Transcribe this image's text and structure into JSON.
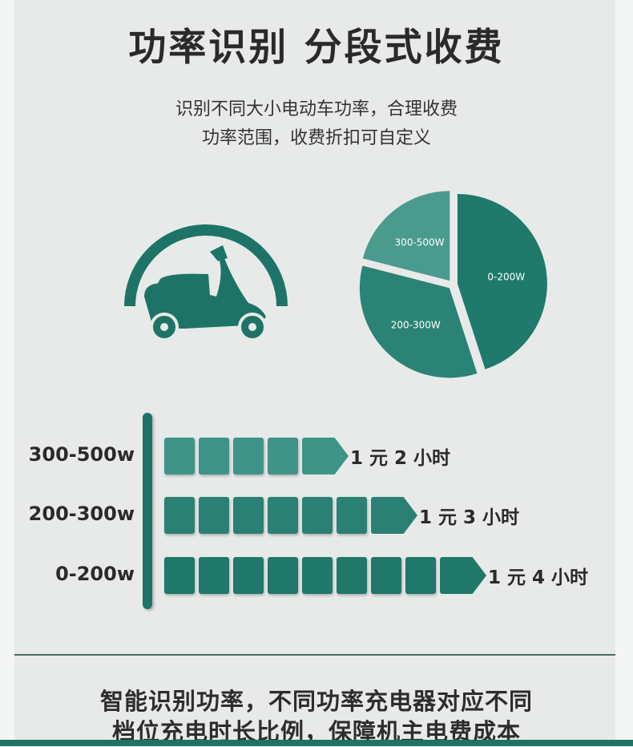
{
  "title": "功率识别 分段式收费",
  "subtitle_lines": [
    "识别不同大小电动车功率，合理收费",
    "功率范围，收费折扣可自定义"
  ],
  "icon": "electric-scooter-icon",
  "colors": {
    "accent": "#1d7466",
    "slice_0_200": "#1f7a6c",
    "slice_200_300": "#2a8375",
    "slice_300_500": "#4a9a8e",
    "panel": "#e7eae8"
  },
  "chart_data": {
    "type": "pie",
    "slices": [
      {
        "label": "0-200W",
        "share": 45
      },
      {
        "label": "200-300W",
        "share": 34
      },
      {
        "label": "300-500W",
        "share": 21
      }
    ]
  },
  "tiers": [
    {
      "label": "300-500w",
      "blocks": 5,
      "price": "1 元 2 小时",
      "color": "#3f9488"
    },
    {
      "label": "200-300w",
      "blocks": 7,
      "price": "1 元 3 小时",
      "color": "#2a8173"
    },
    {
      "label": "0-200w",
      "blocks": 9,
      "price": "1 元 4 小时",
      "color": "#1f7868"
    }
  ],
  "bottom_lines": [
    "智能识别功率，不同功率充电器对应不同",
    "档位充电时长比例，保障机主电费成本"
  ]
}
